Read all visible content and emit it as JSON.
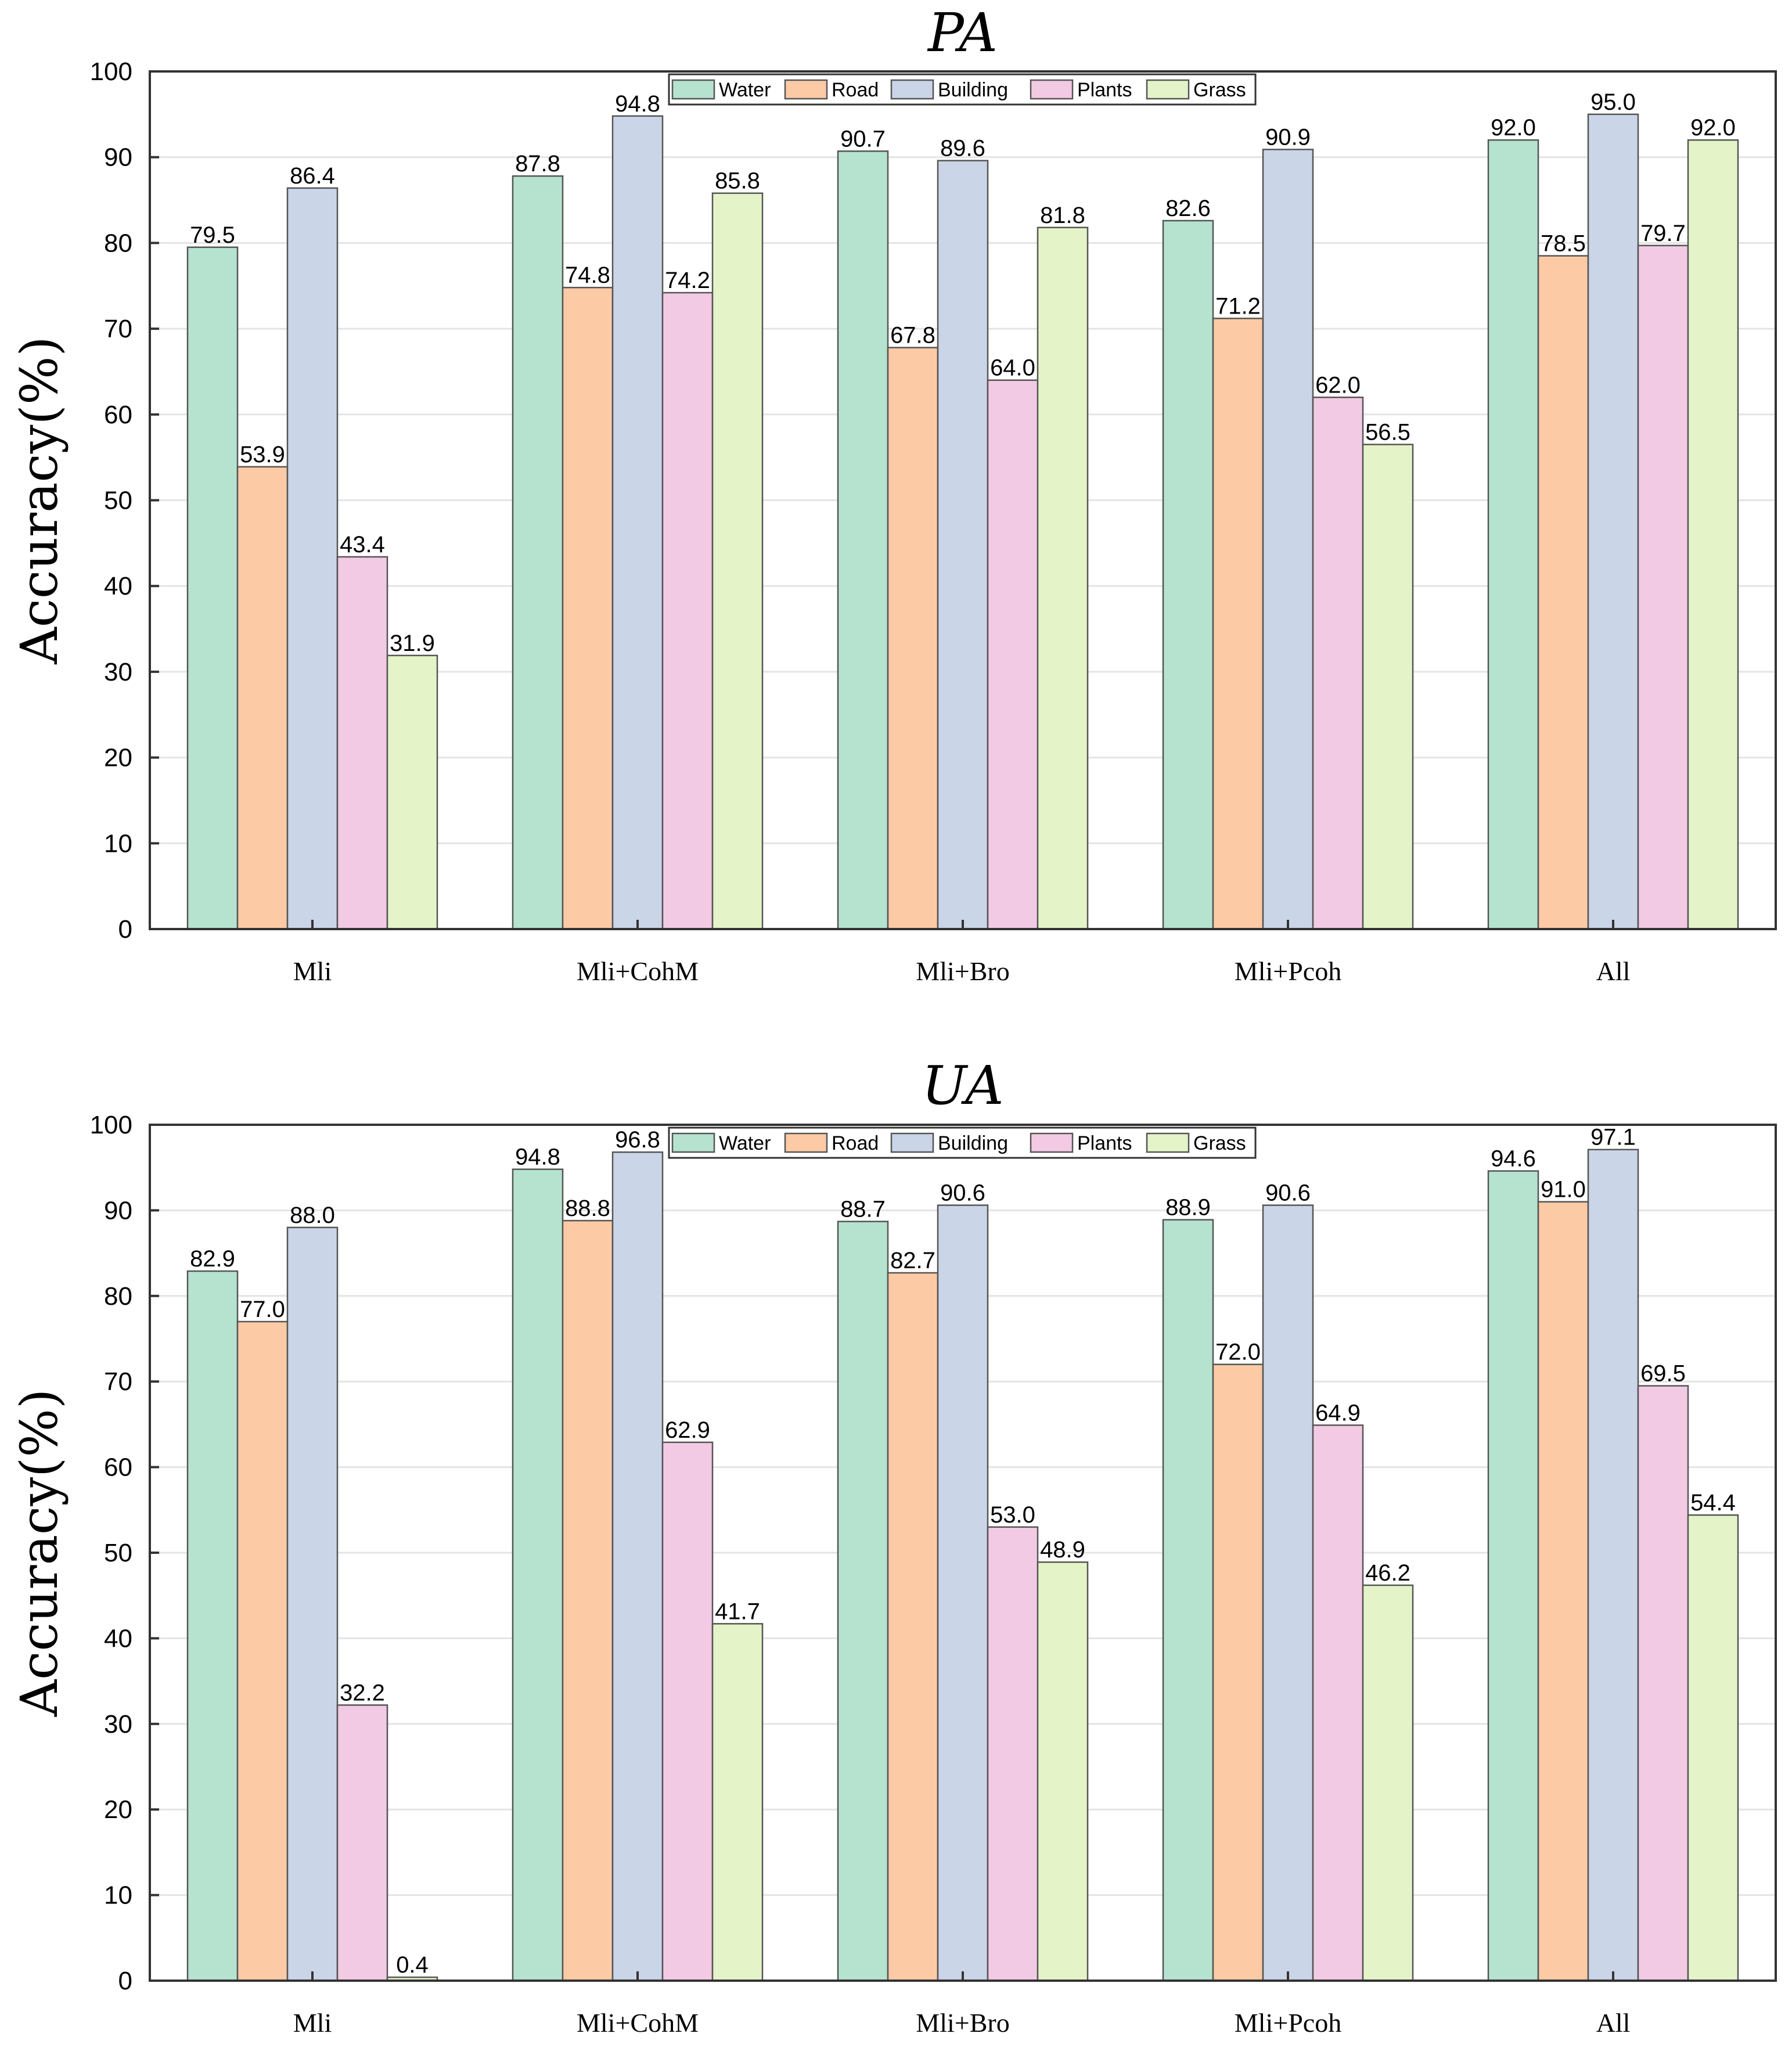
{
  "chart_data": [
    {
      "type": "bar",
      "title": "PA",
      "ylabel": "Accuracy(%)",
      "xlabel": "",
      "ylim": [
        0,
        100
      ],
      "yticks": [
        0,
        10,
        20,
        30,
        40,
        50,
        60,
        70,
        80,
        90,
        100
      ],
      "categories": [
        "Mli",
        "Mli+CohM",
        "Mli+Bro",
        "Mli+Pcoh",
        "All"
      ],
      "legend_position": "top-center",
      "grid": true,
      "series": [
        {
          "name": "Water",
          "color": "#b5e3cf",
          "values": [
            79.5,
            87.8,
            90.7,
            82.6,
            92.0
          ],
          "labels": [
            "79.5",
            "87.8",
            "90.7",
            "82.6",
            "92.0"
          ]
        },
        {
          "name": "Road",
          "color": "#fdcaa6",
          "values": [
            53.9,
            74.8,
            67.8,
            71.2,
            78.5
          ],
          "labels": [
            "53.9",
            "74.8",
            "67.8",
            "71.2",
            "78.5"
          ]
        },
        {
          "name": "Building",
          "color": "#cbd5e8",
          "values": [
            86.4,
            94.8,
            89.6,
            90.9,
            95.0
          ],
          "labels": [
            "86.4",
            "94.8",
            "89.6",
            "90.9",
            "95.0"
          ]
        },
        {
          "name": "Plants",
          "color": "#f3cae3",
          "values": [
            43.4,
            74.2,
            64.0,
            62.0,
            79.7
          ],
          "labels": [
            "43.4",
            "74.2",
            "64.0",
            "62.0",
            "79.7"
          ]
        },
        {
          "name": "Grass",
          "color": "#e5f4c8",
          "values": [
            31.9,
            85.8,
            81.8,
            56.5,
            92.0
          ],
          "labels": [
            "31.9",
            "85.8",
            "81.8",
            "56.5",
            "92.0"
          ]
        }
      ]
    },
    {
      "type": "bar",
      "title": "UA",
      "ylabel": "Accuracy(%)",
      "xlabel": "",
      "ylim": [
        0,
        100
      ],
      "yticks": [
        0,
        10,
        20,
        30,
        40,
        50,
        60,
        70,
        80,
        90,
        100
      ],
      "categories": [
        "Mli",
        "Mli+CohM",
        "Mli+Bro",
        "Mli+Pcoh",
        "All"
      ],
      "legend_position": "top-center",
      "grid": true,
      "series": [
        {
          "name": "Water",
          "color": "#b5e3cf",
          "values": [
            82.9,
            94.8,
            88.7,
            88.9,
            94.6
          ],
          "labels": [
            "82.9",
            "94.8",
            "88.7",
            "88.9",
            "94.6"
          ]
        },
        {
          "name": "Road",
          "color": "#fdcaa6",
          "values": [
            77.0,
            88.8,
            82.7,
            72.0,
            91.0
          ],
          "labels": [
            "77.0",
            "88.8",
            "82.7",
            "72.0",
            "91.0"
          ]
        },
        {
          "name": "Building",
          "color": "#cbd5e8",
          "values": [
            88.0,
            96.8,
            90.6,
            90.6,
            97.1
          ],
          "labels": [
            "88.0",
            "96.8",
            "90.6",
            "90.6",
            "97.1"
          ]
        },
        {
          "name": "Plants",
          "color": "#f3cae3",
          "values": [
            32.2,
            62.9,
            53.0,
            64.9,
            69.5
          ],
          "labels": [
            "32.2",
            "62.9",
            "53.0",
            "64.9",
            "69.5"
          ]
        },
        {
          "name": "Grass",
          "color": "#e5f4c8",
          "values": [
            0.4,
            41.7,
            48.9,
            46.2,
            54.4
          ],
          "labels": [
            "0.4",
            "41.7",
            "48.9",
            "46.2",
            "54.4"
          ]
        }
      ]
    }
  ]
}
